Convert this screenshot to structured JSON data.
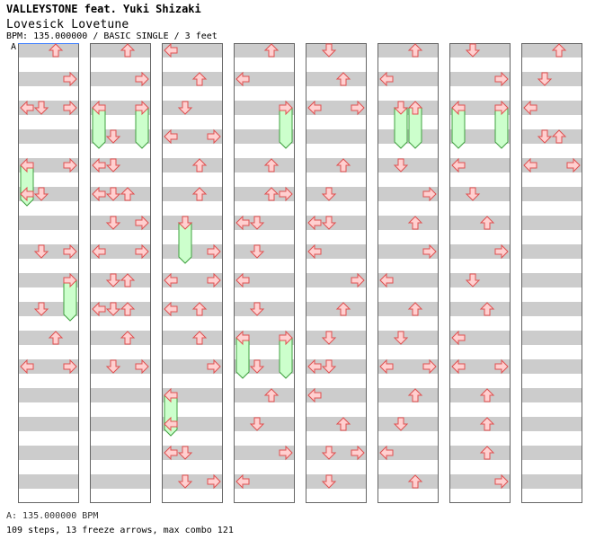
{
  "header": {
    "artist": "VALLEYSTONE feat. Yuki Shizaki",
    "title": "Lovesick Lovetune",
    "info": "BPM: 135.000000 / BASIC SINGLE / 3 feet",
    "bpm_marker": "A"
  },
  "footer": {
    "bpm_legend": "A: 135.000000 BPM",
    "stats": "109 steps, 13 freeze arrows, max combo 121"
  },
  "colors": {
    "arrow_fill": "#ffd0d0",
    "arrow_stroke": "#e05050",
    "freeze_fill": "#ccffcc",
    "freeze_stroke": "#40a040",
    "stripe": "#cccccc",
    "bpm_line": "#4080ff"
  },
  "icons": {
    "left": "left-arrow-icon",
    "down": "down-arrow-icon",
    "up": "up-arrow-icon",
    "right": "right-arrow-icon"
  },
  "chart": {
    "columns": 8,
    "measures_per_column": 8,
    "lanes": [
      "left",
      "down",
      "up",
      "right"
    ],
    "notes": [
      {
        "m": 0,
        "b": 0,
        "lane": 2
      },
      {
        "m": 0,
        "b": 2,
        "lane": 3
      },
      {
        "m": 1,
        "b": 0,
        "lane": 0
      },
      {
        "m": 1,
        "b": 2,
        "lane": 2
      },
      {
        "m": 2,
        "b": 0,
        "lane": 1
      },
      {
        "m": 2,
        "b": 2,
        "lane": 0
      },
      {
        "m": 2,
        "b": 3,
        "lane": 3
      },
      {
        "m": 3,
        "b": 0,
        "lane": 1
      },
      {
        "m": 3,
        "b": 1,
        "lane": 3
      },
      {
        "m": 3,
        "b": 2,
        "lane": 1
      },
      {
        "m": 4,
        "b": 0,
        "lane": 0
      },
      {
        "m": 4,
        "b": 0,
        "lane": 3
      },
      {
        "m": 4,
        "b": 2,
        "lane": 1
      },
      {
        "m": 4,
        "b": 2,
        "lane": 2
      },
      {
        "m": 5,
        "b": 0,
        "lane": 2
      },
      {
        "m": 5,
        "b": 2,
        "lane": 0
      },
      {
        "m": 5,
        "b": 2,
        "lane": 3
      },
      {
        "m": 6,
        "b": 0,
        "lane": 3
      },
      {
        "m": 6,
        "b": 2,
        "lane": 2
      },
      {
        "m": 7,
        "b": 0,
        "lane": 0
      },
      {
        "m": 7,
        "b": 2,
        "lane": 1
      },
      {
        "m": 8,
        "b": 0,
        "lane": 0
      },
      {
        "m": 8,
        "b": 0,
        "lane": 3
      },
      {
        "m": 8,
        "b": 2,
        "lane": 1
      },
      {
        "m": 8,
        "b": 2,
        "lane": 3
      },
      {
        "m": 9,
        "b": 0,
        "lane": 2
      },
      {
        "m": 9,
        "b": 2,
        "lane": 1
      },
      {
        "m": 9,
        "b": 2,
        "lane": 2
      },
      {
        "m": 10,
        "b": 0,
        "lane": 0
      },
      {
        "m": 10,
        "b": 2,
        "lane": 1
      },
      {
        "m": 11,
        "b": 0,
        "lane": 3
      },
      {
        "m": 11,
        "b": 2,
        "lane": 0
      },
      {
        "m": 12,
        "b": 0,
        "lane": 2
      },
      {
        "m": 12,
        "b": 2,
        "lane": 3
      },
      {
        "m": 13,
        "b": 0,
        "lane": 3
      },
      {
        "m": 13,
        "b": 2,
        "lane": 0
      },
      {
        "m": 14,
        "b": 0,
        "lane": 1
      },
      {
        "m": 14,
        "b": 2,
        "lane": 3
      },
      {
        "m": 15,
        "b": 0,
        "lane": 2
      },
      {
        "m": 15,
        "b": 2,
        "lane": 0
      }
    ],
    "freezes": [
      {
        "m": 0,
        "b": 0,
        "lane": 0,
        "len": 0
      }
    ]
  }
}
